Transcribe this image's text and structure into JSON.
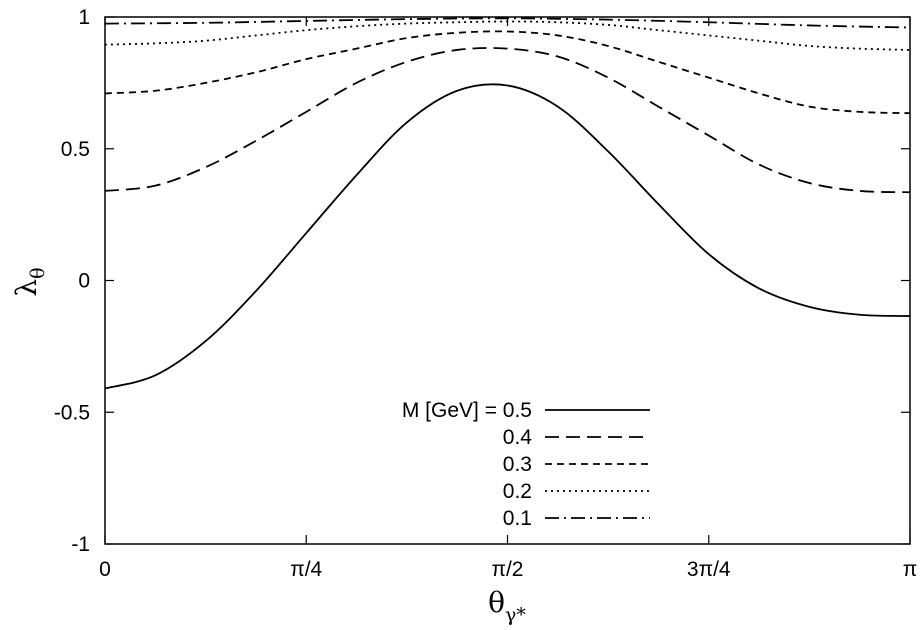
{
  "chart_data": {
    "type": "line",
    "xlabel": {
      "main": "θ",
      "sub": "γ*"
    },
    "ylabel": {
      "main": "λ",
      "sub": "θ"
    },
    "xlim": [
      0,
      3.14159265
    ],
    "ylim": [
      -1,
      1
    ],
    "x_ticks": [
      {
        "value": 0,
        "label": "0"
      },
      {
        "value": 0.78539816,
        "label": "π/4"
      },
      {
        "value": 1.57079633,
        "label": "π/2"
      },
      {
        "value": 2.35619449,
        "label": "3π/4"
      },
      {
        "value": 3.14159265,
        "label": "π"
      }
    ],
    "y_ticks": [
      {
        "value": -1,
        "label": "-1"
      },
      {
        "value": -0.5,
        "label": "-0.5"
      },
      {
        "value": 0,
        "label": "0"
      },
      {
        "value": 0.5,
        "label": "0.5"
      },
      {
        "value": 1,
        "label": "1"
      }
    ],
    "grid": false,
    "legend_position": "bottom-center",
    "series": [
      {
        "name": "M [GeV] = 0.5",
        "dash": "solid",
        "x": [
          0,
          0.1963,
          0.3927,
          0.589,
          0.7854,
          0.9817,
          1.1781,
          1.3744,
          1.5708,
          1.7671,
          1.9635,
          2.1598,
          2.3562,
          2.5525,
          2.7489,
          2.9452,
          3.1416
        ],
        "y": [
          -0.41,
          -0.36,
          -0.23,
          -0.04,
          0.18,
          0.4,
          0.6,
          0.72,
          0.74,
          0.66,
          0.49,
          0.29,
          0.1,
          -0.03,
          -0.1,
          -0.13,
          -0.135
        ]
      },
      {
        "name": "0.4",
        "dash": "long-dash",
        "x": [
          0,
          0.1963,
          0.3927,
          0.589,
          0.7854,
          0.9817,
          1.1781,
          1.3744,
          1.5708,
          1.7671,
          1.9635,
          2.1598,
          2.3562,
          2.5525,
          2.7489,
          2.9452,
          3.1416
        ],
        "y": [
          0.34,
          0.36,
          0.43,
          0.53,
          0.64,
          0.75,
          0.83,
          0.875,
          0.88,
          0.85,
          0.77,
          0.66,
          0.55,
          0.44,
          0.37,
          0.34,
          0.335
        ]
      },
      {
        "name": "0.3",
        "dash": "short-dash",
        "x": [
          0,
          0.1963,
          0.3927,
          0.589,
          0.7854,
          0.9817,
          1.1781,
          1.3744,
          1.5708,
          1.7671,
          1.9635,
          2.1598,
          2.3562,
          2.5525,
          2.7489,
          2.9452,
          3.1416
        ],
        "y": [
          0.71,
          0.72,
          0.75,
          0.79,
          0.84,
          0.88,
          0.92,
          0.94,
          0.945,
          0.93,
          0.89,
          0.83,
          0.77,
          0.71,
          0.66,
          0.64,
          0.635
        ]
      },
      {
        "name": "0.2",
        "dash": "dotted",
        "x": [
          0,
          0.1963,
          0.3927,
          0.589,
          0.7854,
          0.9817,
          1.1781,
          1.3744,
          1.5708,
          1.7671,
          1.9635,
          2.1598,
          2.3562,
          2.5525,
          2.7489,
          2.9452,
          3.1416
        ],
        "y": [
          0.895,
          0.9,
          0.91,
          0.93,
          0.95,
          0.965,
          0.975,
          0.98,
          0.983,
          0.98,
          0.97,
          0.95,
          0.93,
          0.91,
          0.89,
          0.88,
          0.875
        ]
      },
      {
        "name": "0.1",
        "dash": "dash-dot",
        "x": [
          0,
          0.3927,
          0.7854,
          1.1781,
          1.5708,
          1.9635,
          2.3562,
          2.7489,
          3.1416
        ],
        "y": [
          0.975,
          0.978,
          0.985,
          0.992,
          0.995,
          0.99,
          0.98,
          0.968,
          0.96
        ]
      }
    ]
  }
}
